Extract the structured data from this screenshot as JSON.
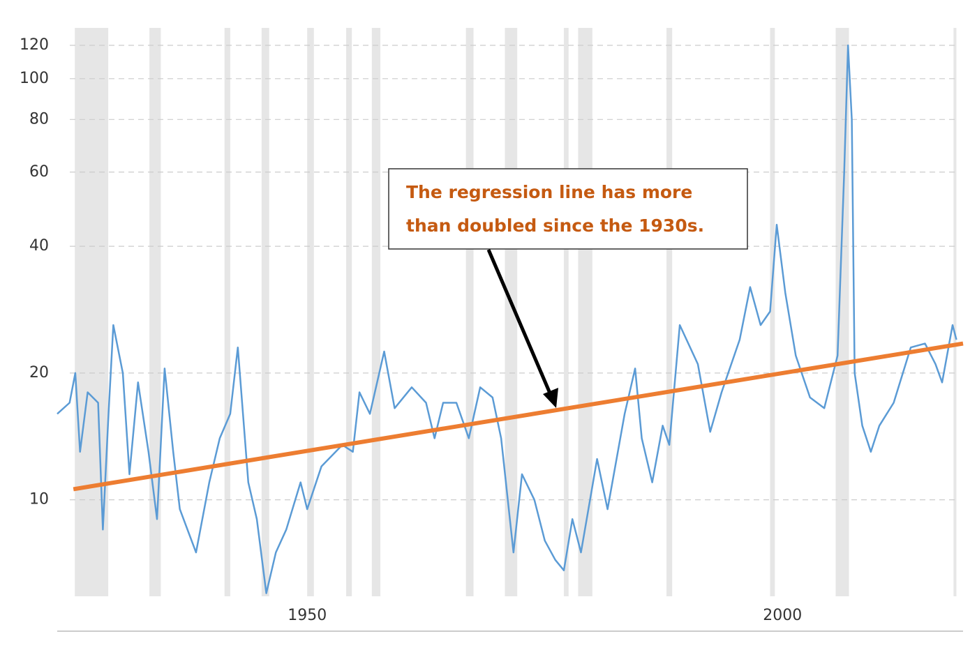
{
  "chart_data": {
    "type": "line",
    "log_y": true,
    "grid": true,
    "xlim": [
      1923.7,
      2019
    ],
    "ylim": [
      5.9,
      132
    ],
    "xticks": [
      1950,
      2000
    ],
    "yticks": [
      10,
      20,
      40,
      60,
      80,
      100,
      120
    ],
    "series": [
      {
        "color": "#5b9bd5",
        "x": [
          1923.7,
          1925.0,
          1925.6,
          1926.1,
          1926.9,
          1928.0,
          1928.5,
          1929.1,
          1929.6,
          1930.6,
          1931.3,
          1932.2,
          1933.3,
          1934.2,
          1935.0,
          1935.9,
          1936.6,
          1938.3,
          1939.7,
          1940.8,
          1941.9,
          1942.7,
          1943.8,
          1944.7,
          1945.7,
          1946.7,
          1947.8,
          1949.3,
          1950.0,
          1951.5,
          1953.7,
          1954.8,
          1955.5,
          1956.6,
          1958.1,
          1959.2,
          1961.0,
          1962.5,
          1963.4,
          1964.3,
          1965.7,
          1967.0,
          1968.2,
          1969.5,
          1970.4,
          1971.7,
          1972.6,
          1973.9,
          1975.0,
          1976.1,
          1977.0,
          1977.9,
          1978.8,
          1980.5,
          1981.6,
          1983.4,
          1984.5,
          1985.2,
          1986.3,
          1987.4,
          1988.1,
          1989.2,
          1991.1,
          1992.4,
          1993.6,
          1995.5,
          1996.6,
          1997.7,
          1998.7,
          1999.4,
          2000.3,
          2001.4,
          2002.9,
          2004.4,
          2005.8,
          2006.5,
          2006.9,
          2007.3,
          2007.6,
          2008.4,
          2009.3,
          2010.2,
          2011.7,
          2013.5,
          2015.0,
          2016.1,
          2016.8,
          2017.9,
          2018.3
        ],
        "values": [
          16,
          17,
          20,
          13,
          18,
          17,
          8.5,
          16,
          26,
          20,
          11.5,
          19,
          13,
          9,
          20.5,
          13,
          9.5,
          7.5,
          11,
          14,
          16,
          23,
          11,
          9,
          6,
          7.5,
          8.5,
          11,
          9.5,
          12,
          13.5,
          13,
          18,
          16,
          22.5,
          16.5,
          18.5,
          17,
          14,
          17,
          17,
          14,
          18.5,
          17.5,
          14,
          7.5,
          11.5,
          10,
          8,
          7.2,
          6.8,
          9,
          7.5,
          12.5,
          9.5,
          16,
          20.5,
          14,
          11,
          15,
          13.5,
          26,
          21,
          14.5,
          18,
          24,
          32,
          26,
          28,
          45,
          31,
          22,
          17.5,
          16.5,
          22,
          60,
          120,
          80,
          20,
          15,
          13,
          15,
          17,
          23,
          23.5,
          21,
          19,
          26,
          24
        ]
      }
    ],
    "regression": {
      "color": "#ed7d31",
      "x": [
        1925.4,
        2019
      ],
      "values": [
        10.6,
        23.5
      ]
    },
    "shaded_ranges": [
      [
        1925.55,
        1929.07
      ],
      [
        1933.4,
        1934.6
      ],
      [
        1941.3,
        1941.9
      ],
      [
        1945.2,
        1946.0
      ],
      [
        1950.0,
        1950.7
      ],
      [
        1954.1,
        1954.7
      ],
      [
        1956.8,
        1957.7
      ],
      [
        1966.7,
        1967.5
      ],
      [
        1970.8,
        1972.1
      ],
      [
        1977.0,
        1977.5
      ],
      [
        1978.5,
        1980.0
      ],
      [
        1987.8,
        1988.4
      ],
      [
        1998.7,
        1999.2
      ],
      [
        2005.6,
        2007.0
      ],
      [
        2018.0,
        2018.3
      ]
    ],
    "shade_color": "#e6e6e6",
    "annotation": [
      "The regression line has more",
      "than doubled since the 1930s."
    ]
  }
}
